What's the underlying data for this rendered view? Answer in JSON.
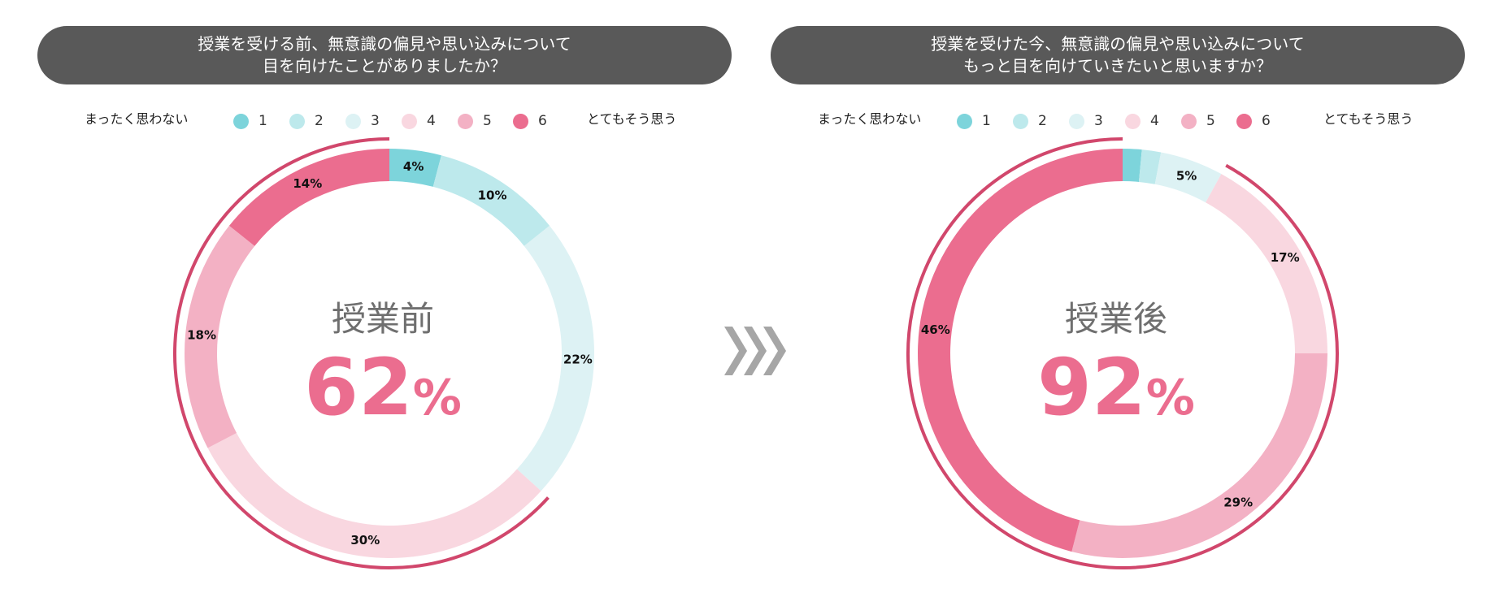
{
  "charts": [
    {
      "question_lines": [
        "授業を受ける前、無意識の偏見や思い込みについて",
        "目を向けたことがありましたか？"
      ],
      "center_label": "授業前",
      "center_number": "62",
      "center_unit": "%"
    },
    {
      "question_lines": [
        "授業を受けた今、無意識の偏見や思い込みについて",
        "もっと目を向けていきたいと思いますか？"
      ],
      "center_label": "授業後",
      "center_number": "92",
      "center_unit": "%"
    }
  ],
  "legend": {
    "low_label": "まったく思わない",
    "high_label": "とてもそう思う",
    "items": [
      {
        "label": "1",
        "color": "#7DD4DB"
      },
      {
        "label": "2",
        "color": "#BDE9EC"
      },
      {
        "label": "3",
        "color": "#DDF2F4"
      },
      {
        "label": "4",
        "color": "#F9D7E0"
      },
      {
        "label": "5",
        "color": "#F3B1C4"
      },
      {
        "label": "6",
        "color": "#EB6D8F"
      }
    ]
  },
  "colors": {
    "accent": "#EB6D8F",
    "bracket": "#D1476C",
    "header_bg": "#595959",
    "arrow": "#A6A6A6"
  },
  "chart_data": [
    {
      "type": "pie",
      "title": "授業を受ける前、無意識の偏見や思い込みについて目を向けたことがありましたか？",
      "categories": [
        "1",
        "2",
        "3",
        "4",
        "5",
        "6"
      ],
      "values": [
        4,
        10,
        22,
        30,
        18,
        14
      ],
      "value_labels": [
        "4%",
        "10%",
        "22%",
        "30%",
        "18%",
        "14%"
      ],
      "highlight_total": 62,
      "highlight_categories": [
        "4",
        "5",
        "6"
      ]
    },
    {
      "type": "pie",
      "title": "授業を受けた今、無意識の偏見や思い込みについてもっと目を向けていきたいと思いますか？",
      "categories": [
        "1",
        "2",
        "3",
        "4",
        "5",
        "6"
      ],
      "values": [
        1.5,
        1.5,
        5,
        17,
        29,
        46
      ],
      "value_labels": [
        "",
        "",
        "5%",
        "17%",
        "29%",
        "46%"
      ],
      "highlight_total": 92,
      "highlight_categories": [
        "4",
        "5",
        "6"
      ]
    }
  ]
}
